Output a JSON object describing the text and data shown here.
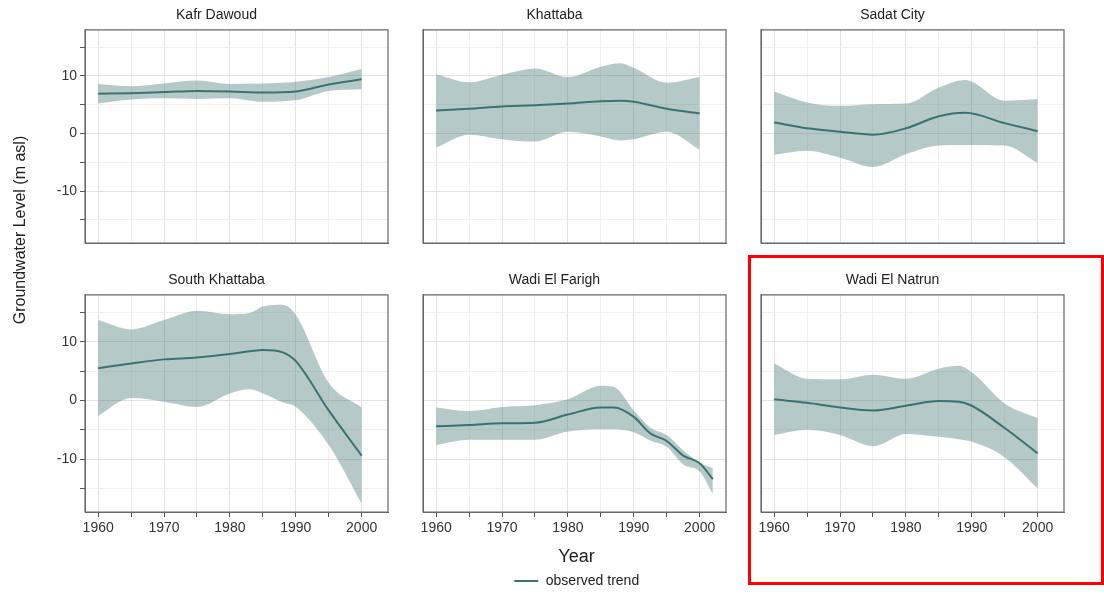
{
  "chart_data": [
    {
      "type": "line",
      "title": "Kafr Dawoud",
      "xlim": [
        1958,
        2004
      ],
      "ylim": [
        -19,
        18
      ],
      "xticks": [
        1960,
        {
          "value": 1965,
          "label": null
        },
        1970,
        {
          "value": 1975,
          "label": null
        },
        1980,
        {
          "value": 1985,
          "label": null
        },
        1990,
        {
          "value": 1995,
          "label": null
        },
        2000
      ],
      "yticks": [
        {
          "value": -15,
          "label": null
        },
        -10,
        {
          "value": -5,
          "label": null
        },
        0,
        {
          "value": 5,
          "label": null
        },
        10,
        {
          "value": 15,
          "label": null
        }
      ],
      "grid": true,
      "tick_labels": "y",
      "series": [
        {
          "color": "#3d7272",
          "x": [
            1960,
            1965,
            1970,
            1975,
            1980,
            1985,
            1990,
            1995,
            2000
          ],
          "values": [
            6.9,
            7.0,
            7.2,
            7.4,
            7.3,
            7.1,
            7.3,
            8.5,
            9.4
          ],
          "lower": [
            5.2,
            5.9,
            6.1,
            6.0,
            6.1,
            5.5,
            5.8,
            7.4,
            7.7
          ],
          "upper": [
            8.6,
            8.2,
            8.7,
            9.2,
            8.6,
            8.7,
            9.0,
            9.8,
            11.2
          ]
        }
      ]
    },
    {
      "type": "line",
      "title": "Khattaba",
      "xlim": [
        1958,
        2004
      ],
      "ylim": [
        -19,
        18
      ],
      "xticks": [
        1960,
        {
          "value": 1965,
          "label": null
        },
        1970,
        {
          "value": 1975,
          "label": null
        },
        1980,
        {
          "value": 1985,
          "label": null
        },
        1990,
        {
          "value": 1995,
          "label": null
        },
        2000
      ],
      "yticks": [
        {
          "value": -15,
          "label": null
        },
        -10,
        {
          "value": -5,
          "label": null
        },
        0,
        {
          "value": 5,
          "label": null
        },
        10,
        {
          "value": 15,
          "label": null
        }
      ],
      "grid": true,
      "tick_labels": false,
      "series": [
        {
          "color": "#3d7272",
          "x": [
            1960,
            1965,
            1970,
            1975,
            1980,
            1985,
            1988,
            1990,
            1995,
            2000
          ],
          "values": [
            4.0,
            4.3,
            4.7,
            4.9,
            5.2,
            5.6,
            5.7,
            5.5,
            4.3,
            3.5
          ],
          "lower": [
            -2.4,
            -0.2,
            -1.0,
            -1.4,
            0.3,
            -0.5,
            -1.2,
            -1.0,
            0.3,
            -2.8
          ],
          "upper": [
            10.3,
            8.9,
            10.2,
            11.3,
            9.8,
            11.6,
            12.2,
            11.4,
            8.8,
            9.8
          ]
        }
      ]
    },
    {
      "type": "line",
      "title": "Sadat City",
      "xlim": [
        1958,
        2004
      ],
      "ylim": [
        -19,
        18
      ],
      "xticks": [
        1960,
        {
          "value": 1965,
          "label": null
        },
        1970,
        {
          "value": 1975,
          "label": null
        },
        1980,
        {
          "value": 1985,
          "label": null
        },
        1990,
        {
          "value": 1995,
          "label": null
        },
        2000
      ],
      "yticks": [
        {
          "value": -15,
          "label": null
        },
        -10,
        {
          "value": -5,
          "label": null
        },
        0,
        {
          "value": 5,
          "label": null
        },
        10,
        {
          "value": 15,
          "label": null
        }
      ],
      "grid": true,
      "tick_labels": false,
      "series": [
        {
          "color": "#3d7272",
          "x": [
            1960,
            1965,
            1970,
            1975,
            1980,
            1985,
            1989,
            1995,
            2000
          ],
          "values": [
            1.9,
            0.9,
            0.3,
            -0.2,
            0.9,
            3.0,
            3.6,
            1.8,
            0.4
          ],
          "lower": [
            -3.7,
            -3.0,
            -4.2,
            -5.8,
            -3.6,
            -2.1,
            -2.0,
            -2.1,
            -5.1
          ],
          "upper": [
            7.3,
            5.4,
            4.8,
            5.1,
            5.2,
            8.0,
            9.3,
            5.7,
            6.0
          ]
        }
      ]
    },
    {
      "type": "line",
      "title": "South Khattaba",
      "ylabel": "Groundwater Level (m asl)",
      "xlim": [
        1958,
        2004
      ],
      "ylim": [
        -19,
        18
      ],
      "xticks": [
        1960,
        {
          "value": 1965,
          "label": null
        },
        1970,
        {
          "value": 1975,
          "label": null
        },
        1980,
        {
          "value": 1985,
          "label": null
        },
        1990,
        {
          "value": 1995,
          "label": null
        },
        2000
      ],
      "yticks": [
        {
          "value": -15,
          "label": null
        },
        -10,
        {
          "value": -5,
          "label": null
        },
        0,
        {
          "value": 5,
          "label": null
        },
        10,
        {
          "value": 15,
          "label": null
        }
      ],
      "grid": true,
      "series": [
        {
          "color": "#3d7272",
          "x": [
            1960,
            1965,
            1970,
            1975,
            1980,
            1983,
            1985,
            1988,
            1990,
            1995,
            2000
          ],
          "values": [
            5.5,
            6.3,
            7.0,
            7.3,
            7.9,
            8.4,
            8.6,
            8.2,
            6.7,
            -1.7,
            -9.4
          ],
          "lower": [
            -2.6,
            0.4,
            -0.2,
            -1.1,
            1.2,
            1.9,
            1.2,
            -0.3,
            -1.1,
            -7.6,
            -17.6
          ],
          "upper": [
            13.7,
            12.1,
            13.7,
            15.3,
            14.7,
            14.9,
            16.0,
            16.3,
            14.6,
            3.0,
            -1.2
          ]
        }
      ]
    },
    {
      "type": "line",
      "title": "Wadi El Farigh",
      "xlabel": "Year",
      "legend": "bottom",
      "xlim": [
        1958,
        2004
      ],
      "ylim": [
        -19,
        18
      ],
      "xticks": [
        1960,
        {
          "value": 1965,
          "label": null
        },
        1970,
        {
          "value": 1975,
          "label": null
        },
        1980,
        {
          "value": 1985,
          "label": null
        },
        1990,
        {
          "value": 1995,
          "label": null
        },
        2000
      ],
      "yticks": [
        {
          "value": -15,
          "label": null
        },
        -10,
        {
          "value": -5,
          "label": null
        },
        0,
        {
          "value": 5,
          "label": null
        },
        10,
        {
          "value": 15,
          "label": null
        }
      ],
      "grid": true,
      "tick_labels": "x",
      "series": [
        {
          "name": "observed trend",
          "color": "#3d7272",
          "x": [
            1960,
            1965,
            1970,
            1975,
            1980,
            1985,
            1987,
            1990,
            1992.5,
            1995,
            1997.5,
            2000,
            2002
          ],
          "values": [
            -4.4,
            -4.2,
            -3.9,
            -3.8,
            -2.4,
            -1.2,
            -1.2,
            -2.8,
            -5.6,
            -6.9,
            -9.4,
            -10.7,
            -13.4
          ],
          "lower": [
            -7.6,
            -6.7,
            -6.7,
            -6.7,
            -5.3,
            -4.9,
            -4.9,
            -5.4,
            -6.8,
            -7.9,
            -10.9,
            -12.1,
            -15.9
          ],
          "upper": [
            -1.2,
            -1.8,
            -1.1,
            -0.8,
            0.2,
            2.5,
            2.3,
            -1.7,
            -4.6,
            -5.9,
            -8.5,
            -10.6,
            -11.5
          ]
        }
      ]
    },
    {
      "type": "line",
      "title": "Wadi El Natrun",
      "xlim": [
        1958,
        2004
      ],
      "ylim": [
        -19,
        18
      ],
      "xticks": [
        1960,
        {
          "value": 1965,
          "label": null
        },
        1970,
        {
          "value": 1975,
          "label": null
        },
        1980,
        {
          "value": 1985,
          "label": null
        },
        1990,
        {
          "value": 1995,
          "label": null
        },
        2000
      ],
      "yticks": [
        {
          "value": -15,
          "label": null
        },
        -10,
        {
          "value": -5,
          "label": null
        },
        0,
        {
          "value": 5,
          "label": null
        },
        10,
        {
          "value": 15,
          "label": null
        }
      ],
      "grid": true,
      "tick_labels": "x",
      "series": [
        {
          "color": "#3d7272",
          "x": [
            1960,
            1965,
            1970,
            1975,
            1980,
            1985,
            1988,
            1990,
            1995,
            2000
          ],
          "values": [
            0.2,
            -0.4,
            -1.2,
            -1.7,
            -0.9,
            -0.1,
            -0.2,
            -0.9,
            -4.7,
            -9.0
          ],
          "lower": [
            -5.9,
            -5.0,
            -5.9,
            -7.8,
            -5.7,
            -6.2,
            -6.6,
            -7.0,
            -9.7,
            -15.0
          ],
          "upper": [
            6.3,
            3.7,
            3.6,
            4.4,
            3.7,
            5.4,
            5.9,
            4.8,
            -0.5,
            -3.0
          ]
        }
      ]
    }
  ]
}
